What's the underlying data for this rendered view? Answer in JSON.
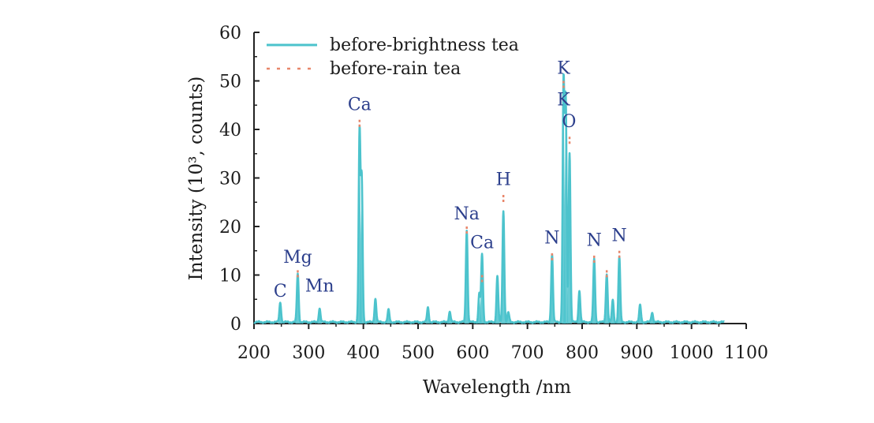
{
  "chart_data": {
    "type": "line",
    "title": "",
    "xlabel": "Wavelength /nm",
    "ylabel": "Intensity (10³, counts)",
    "xlim": [
      200,
      1100
    ],
    "ylim": [
      0,
      60
    ],
    "xticks": [
      200,
      300,
      400,
      500,
      600,
      700,
      800,
      900,
      1000,
      1100
    ],
    "yticks": [
      0,
      10,
      20,
      30,
      40,
      50,
      60
    ],
    "x_range_data": [
      200,
      1060
    ],
    "legend_position": "top-left",
    "grid": false,
    "series": [
      {
        "name": "before-brightness tea",
        "color": "#4cc3cc",
        "style": "solid",
        "baseline": 0.3,
        "peaks": [
          {
            "x": 248,
            "y": 4
          },
          {
            "x": 280,
            "y": 10
          },
          {
            "x": 320,
            "y": 2.8
          },
          {
            "x": 393,
            "y": 39
          },
          {
            "x": 397,
            "y": 29
          },
          {
            "x": 422,
            "y": 4.8
          },
          {
            "x": 446,
            "y": 2.5
          },
          {
            "x": 518,
            "y": 3
          },
          {
            "x": 558,
            "y": 2.2
          },
          {
            "x": 589,
            "y": 19
          },
          {
            "x": 612,
            "y": 6
          },
          {
            "x": 617,
            "y": 14
          },
          {
            "x": 645,
            "y": 9.5
          },
          {
            "x": 656,
            "y": 23
          },
          {
            "x": 665,
            "y": 2
          },
          {
            "x": 745,
            "y": 14
          },
          {
            "x": 766,
            "y": 49
          },
          {
            "x": 770,
            "y": 45
          },
          {
            "x": 777,
            "y": 35
          },
          {
            "x": 795,
            "y": 6.5
          },
          {
            "x": 822,
            "y": 13
          },
          {
            "x": 845,
            "y": 10
          },
          {
            "x": 856,
            "y": 4.5
          },
          {
            "x": 868,
            "y": 13.5
          },
          {
            "x": 906,
            "y": 3.5
          },
          {
            "x": 928,
            "y": 2
          }
        ]
      },
      {
        "name": "before-rain tea",
        "color": "#e8866a",
        "style": "dashed",
        "peaks": [
          {
            "x": 280,
            "y": 11
          },
          {
            "x": 393,
            "y": 42
          },
          {
            "x": 589,
            "y": 20
          },
          {
            "x": 617,
            "y": 10
          },
          {
            "x": 656,
            "y": 26.5
          },
          {
            "x": 745,
            "y": 14.5
          },
          {
            "x": 766,
            "y": 50
          },
          {
            "x": 777,
            "y": 38.5
          },
          {
            "x": 822,
            "y": 14
          },
          {
            "x": 845,
            "y": 11
          },
          {
            "x": 868,
            "y": 15
          }
        ]
      }
    ],
    "annotations": [
      {
        "text": "C",
        "x": 248,
        "y": 5.5
      },
      {
        "text": "Mg",
        "x": 280,
        "y": 12.5
      },
      {
        "text": "Mn",
        "x": 320,
        "y": 6.6
      },
      {
        "text": "Ca",
        "x": 393,
        "y": 44
      },
      {
        "text": "Na",
        "x": 589,
        "y": 21.5
      },
      {
        "text": "Ca",
        "x": 617,
        "y": 15.5
      },
      {
        "text": "H",
        "x": 656,
        "y": 28.5
      },
      {
        "text": "N",
        "x": 745,
        "y": 16.5
      },
      {
        "text": "K",
        "x": 766,
        "y": 51.5
      },
      {
        "text": "K",
        "x": 766,
        "y": 45
      },
      {
        "text": "O",
        "x": 776,
        "y": 40.5
      },
      {
        "text": "N",
        "x": 822,
        "y": 16
      },
      {
        "text": "N",
        "x": 868,
        "y": 17
      }
    ]
  }
}
